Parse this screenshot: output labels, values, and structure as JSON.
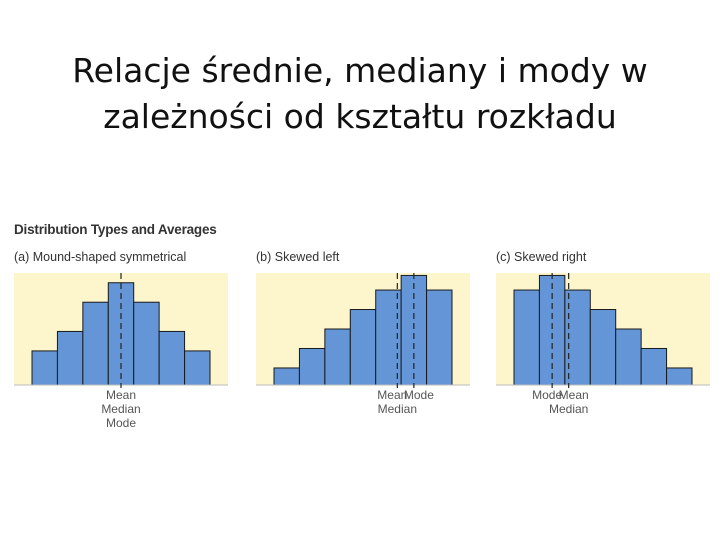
{
  "page_title": {
    "line1": "Relacje średnie, mediany i mody w",
    "line2": "zależności od kształtu rozkładu"
  },
  "figure_title": "Distribution Types and Averages",
  "colors": {
    "panel_bg": "#fdf6cc",
    "bar_fill": "#6495d6",
    "bar_stroke": "#1a1a1a",
    "marker": "#222222"
  },
  "chart_data": [
    {
      "type": "bar",
      "label": "(a)  Mound-shaped symmetrical",
      "values": [
        1.4,
        2.2,
        3.4,
        4.2,
        3.4,
        2.2,
        1.4
      ],
      "markers": [
        {
          "position": 3.5,
          "lines": [
            "Mean",
            "Median",
            "Mode"
          ]
        }
      ]
    },
    {
      "type": "bar",
      "label": "(b)  Skewed left",
      "values": [
        0.7,
        1.5,
        2.3,
        3.1,
        3.9,
        4.5,
        3.9
      ],
      "markers": [
        {
          "position": 4.85,
          "lines": [
            "Mean",
            "Median"
          ]
        },
        {
          "position": 5.5,
          "lines": [
            "Mode"
          ]
        }
      ]
    },
    {
      "type": "bar",
      "label": "(c)  Skewed right",
      "values": [
        3.9,
        4.5,
        3.9,
        3.1,
        2.3,
        1.5,
        0.7
      ],
      "markers": [
        {
          "position": 1.5,
          "lines": [
            "Mode"
          ]
        },
        {
          "position": 2.15,
          "lines": [
            "Mean",
            "Median"
          ]
        }
      ]
    }
  ]
}
